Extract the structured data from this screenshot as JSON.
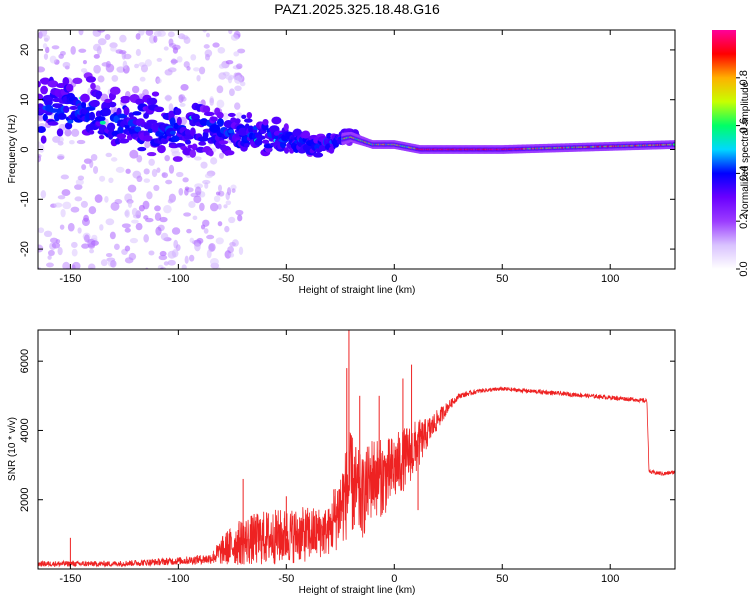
{
  "title": "PAZ1.2025.325.18.48.G16",
  "chart_data": [
    {
      "type": "heatmap",
      "xlabel": "Height of straight line (km)",
      "ylabel": "Frequency (Hz)",
      "xlim": [
        -165,
        130
      ],
      "ylim": [
        -24,
        24
      ],
      "xticks": [
        -150,
        -100,
        -50,
        0,
        50,
        100
      ],
      "xtick_labels": [
        "-150",
        "-100",
        "-50",
        "0",
        "50",
        "100"
      ],
      "yticks": [
        20,
        10,
        0,
        -10,
        -20
      ],
      "ytick_labels": [
        "20",
        "10",
        "0",
        "-10",
        "-20"
      ],
      "colorbar": {
        "label": "Normalized spectral amplitude",
        "range": [
          0,
          1
        ],
        "ticks": [
          0.0,
          0.2,
          0.4,
          0.6,
          0.8
        ],
        "tick_labels": [
          "0.0",
          "0.2",
          "0.4",
          "0.6",
          "0.8"
        ],
        "colormap": [
          "#ffffff",
          "#d9c2ff",
          "#9b3cff",
          "#6a00ff",
          "#0000ff",
          "#00d8ff",
          "#00ff66",
          "#c8ff00",
          "#ffb000",
          "#ff0000",
          "#ff0099"
        ]
      },
      "ridge": [
        {
          "x": -160,
          "f": 8.5,
          "spread": 10
        },
        {
          "x": -140,
          "f": 7.5,
          "spread": 9
        },
        {
          "x": -120,
          "f": 5,
          "spread": 8
        },
        {
          "x": -100,
          "f": 4,
          "spread": 8
        },
        {
          "x": -85,
          "f": 4,
          "spread": 7
        },
        {
          "x": -70,
          "f": 3,
          "spread": 6
        },
        {
          "x": -55,
          "f": 2.5,
          "spread": 5
        },
        {
          "x": -45,
          "f": 1.5,
          "spread": 4
        },
        {
          "x": -35,
          "f": 1,
          "spread": 3
        },
        {
          "x": -20,
          "f": 2.5,
          "spread": 1.5
        },
        {
          "x": -10,
          "f": 1,
          "spread": 1
        },
        {
          "x": 0,
          "f": 1,
          "spread": 0.8
        },
        {
          "x": 12,
          "f": 0,
          "spread": 0.5
        },
        {
          "x": 50,
          "f": 0,
          "spread": 0.5
        },
        {
          "x": 90,
          "f": 0.5,
          "spread": 0.6
        },
        {
          "x": 130,
          "f": 1,
          "spread": 0.7
        }
      ]
    },
    {
      "type": "line",
      "xlabel": "Height of straight line (km)",
      "ylabel": "SNR (10 * v/v)",
      "xlim": [
        -165,
        130
      ],
      "ylim": [
        0,
        6900
      ],
      "xticks": [
        -150,
        -100,
        -50,
        0,
        50,
        100
      ],
      "xtick_labels": [
        "-150",
        "-100",
        "-50",
        "0",
        "50",
        "100"
      ],
      "yticks": [
        2000,
        4000,
        6000
      ],
      "ytick_labels": [
        "2000",
        "4000",
        "6000"
      ],
      "color": "#ee2222",
      "envelope": {
        "x": [
          -165,
          -150,
          -130,
          -110,
          -95,
          -85,
          -78,
          -70,
          -60,
          -50,
          -40,
          -30,
          -25,
          -20,
          -15,
          -10,
          -5,
          0,
          5,
          10,
          15,
          20,
          25,
          30,
          40,
          50,
          60,
          80,
          100,
          110,
          117,
          118,
          125,
          130
        ],
        "mean": [
          150,
          150,
          150,
          200,
          250,
          300,
          600,
          800,
          900,
          950,
          1000,
          1100,
          1800,
          2500,
          2000,
          2700,
          2600,
          2900,
          3200,
          3500,
          3900,
          4300,
          4700,
          5000,
          5150,
          5200,
          5150,
          5050,
          4950,
          4900,
          4850,
          2800,
          2750,
          2800
        ],
        "noise": [
          80,
          80,
          80,
          100,
          120,
          150,
          500,
          700,
          800,
          800,
          800,
          700,
          1200,
          1500,
          1200,
          1200,
          1100,
          1000,
          900,
          800,
          450,
          300,
          150,
          80,
          60,
          60,
          60,
          60,
          60,
          60,
          60,
          60,
          60,
          60
        ]
      },
      "spikes": [
        {
          "x": -150,
          "y": 900
        },
        {
          "x": -70,
          "y": 2600
        },
        {
          "x": -50,
          "y": 2100
        },
        {
          "x": -28,
          "y": 2300
        },
        {
          "x": -22,
          "y": 5800
        },
        {
          "x": -21,
          "y": 6900
        },
        {
          "x": -16,
          "y": 5000
        },
        {
          "x": -7,
          "y": 5000
        },
        {
          "x": 4,
          "y": 5500
        },
        {
          "x": 8,
          "y": 5900
        },
        {
          "x": 11,
          "y": 1700
        }
      ]
    }
  ]
}
